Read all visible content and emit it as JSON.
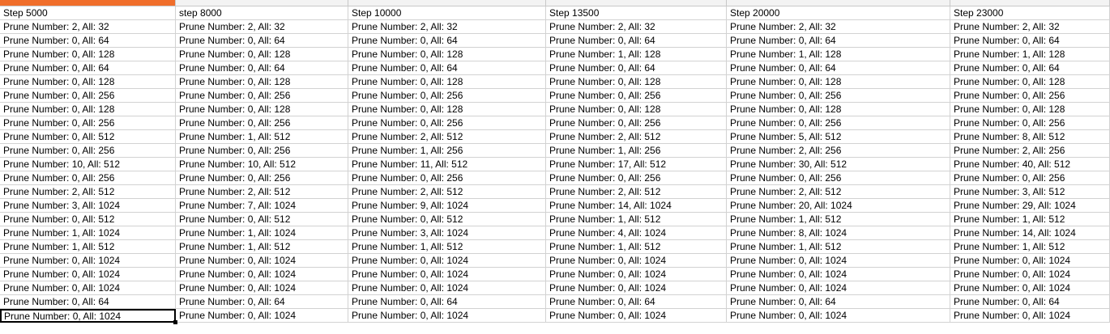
{
  "columns": [
    {
      "header": "Step 5000",
      "cells": [
        "Prune Number: 2, All: 32",
        "Prune Number: 0, All: 64",
        "Prune Number: 0, All: 128",
        "Prune Number: 0, All: 64",
        "Prune Number: 0, All: 128",
        "Prune Number: 0, All: 256",
        "Prune Number: 0, All: 128",
        "Prune Number: 0, All: 256",
        "Prune Number: 0, All: 512",
        "Prune Number: 0, All: 256",
        "Prune Number: 10, All: 512",
        "Prune Number: 0, All: 256",
        "Prune Number: 2, All: 512",
        "Prune Number: 3, All: 1024",
        "Prune Number: 0, All: 512",
        "Prune Number: 1, All: 1024",
        "Prune Number: 1, All: 512",
        "Prune Number: 0, All: 1024",
        "Prune Number: 0, All: 1024",
        "Prune Number: 0, All: 1024",
        "Prune Number: 0, All: 64",
        "Prune Number: 0, All: 1024"
      ]
    },
    {
      "header": "step   8000",
      "cells": [
        "Prune Number: 2, All: 32",
        "Prune Number: 0, All: 64",
        "Prune Number: 0, All: 128",
        "Prune Number: 0, All: 64",
        "Prune Number: 0, All: 128",
        "Prune Number: 0, All: 256",
        "Prune Number: 0, All: 128",
        "Prune Number: 0, All: 256",
        "Prune Number: 1, All: 512",
        "Prune Number: 0, All: 256",
        "Prune Number: 10, All: 512",
        "Prune Number: 0, All: 256",
        "Prune Number: 2, All: 512",
        "Prune Number: 7, All: 1024",
        "Prune Number: 0, All: 512",
        "Prune Number: 1, All: 1024",
        "Prune Number: 1, All: 512",
        "Prune Number: 0, All: 1024",
        "Prune Number: 0, All: 1024",
        "Prune Number: 0, All: 1024",
        "Prune Number: 0, All: 64",
        "Prune Number: 0, All: 1024"
      ]
    },
    {
      "header": "Step 10000",
      "cells": [
        "Prune Number: 2, All: 32",
        "Prune Number: 0, All: 64",
        "Prune Number: 0, All: 128",
        "Prune Number: 0, All: 64",
        "Prune Number: 0, All: 128",
        "Prune Number: 0, All: 256",
        "Prune Number: 0, All: 128",
        "Prune Number: 0, All: 256",
        "Prune Number: 2, All: 512",
        "Prune Number: 1, All: 256",
        "Prune Number: 11, All: 512",
        "Prune Number: 0, All: 256",
        "Prune Number: 2, All: 512",
        "Prune Number: 9, All: 1024",
        "Prune Number: 0, All: 512",
        "Prune Number: 3, All: 1024",
        "Prune Number: 1, All: 512",
        "Prune Number: 0, All: 1024",
        "Prune Number: 0, All: 1024",
        "Prune Number: 0, All: 1024",
        "Prune Number: 0, All: 64",
        "Prune Number: 0, All: 1024"
      ]
    },
    {
      "header": "Step 13500",
      "cells": [
        "Prune Number: 2, All: 32",
        "Prune Number: 0, All: 64",
        "Prune Number: 1, All: 128",
        "Prune Number: 0, All: 64",
        "Prune Number: 0, All: 128",
        "Prune Number: 0, All: 256",
        "Prune Number: 0, All: 128",
        "Prune Number: 0, All: 256",
        "Prune Number: 2, All: 512",
        "Prune Number: 1, All: 256",
        "Prune Number: 17, All: 512",
        "Prune Number: 0, All: 256",
        "Prune Number: 2, All: 512",
        "Prune Number: 14, All: 1024",
        "Prune Number: 1, All: 512",
        "Prune Number: 4, All: 1024",
        "Prune Number: 1, All: 512",
        "Prune Number: 0, All: 1024",
        "Prune Number: 0, All: 1024",
        "Prune Number: 0, All: 1024",
        "Prune Number: 0, All: 64",
        "Prune Number: 0, All: 1024"
      ]
    },
    {
      "header": "Step 20000",
      "cells": [
        "Prune Number: 2, All: 32",
        "Prune Number: 0, All: 64",
        "Prune Number: 1, All: 128",
        "Prune Number: 0, All: 64",
        "Prune Number: 0, All: 128",
        "Prune Number: 0, All: 256",
        "Prune Number: 0, All: 128",
        "Prune Number: 0, All: 256",
        "Prune Number: 5, All: 512",
        "Prune Number: 2, All: 256",
        "Prune Number: 30, All: 512",
        "Prune Number: 0, All: 256",
        "Prune Number: 2, All: 512",
        "Prune Number: 20, All: 1024",
        "Prune Number: 1, All: 512",
        "Prune Number: 8, All: 1024",
        "Prune Number: 1, All: 512",
        "Prune Number: 0, All: 1024",
        "Prune Number: 0, All: 1024",
        "Prune Number: 0, All: 1024",
        "Prune Number: 0, All: 64",
        "Prune Number: 0, All: 1024"
      ]
    },
    {
      "header": "Step 23000",
      "cells": [
        "Prune Number: 2, All: 32",
        "Prune Number: 0, All: 64",
        "Prune Number: 1, All: 128",
        "Prune Number: 0, All: 64",
        "Prune Number: 0, All: 128",
        "Prune Number: 0, All: 256",
        "Prune Number: 0, All: 128",
        "Prune Number: 0, All: 256",
        "Prune Number: 8, All: 512",
        "Prune Number: 2, All: 256",
        "Prune Number: 40, All: 512",
        "Prune Number: 0, All: 256",
        "Prune Number: 3, All: 512",
        "Prune Number: 29, All: 1024",
        "Prune Number: 1, All: 512",
        "Prune Number: 14, All: 1024",
        "Prune Number: 1, All: 512",
        "Prune Number: 0, All: 1024",
        "Prune Number: 0, All: 1024",
        "Prune Number: 0, All: 1024",
        "Prune Number: 0, All: 64",
        "Prune Number: 0, All: 1024"
      ]
    }
  ],
  "selected": {
    "column": 0,
    "row": 21
  },
  "colors": {
    "active_column_header": "#f06e2b",
    "grid_line": "#d2d2d2"
  }
}
